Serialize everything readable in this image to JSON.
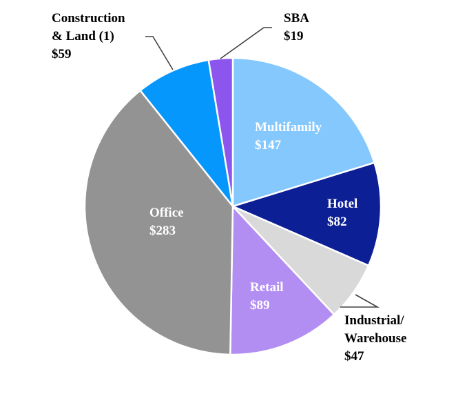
{
  "chart_data": {
    "type": "pie",
    "title": "",
    "units": "$",
    "slices": [
      {
        "name": "Multifamily",
        "value": 147,
        "value_label": "$147",
        "color": "#85c8fd",
        "label_lines": [
          "Multifamily",
          "$147"
        ],
        "label_placement": "inside"
      },
      {
        "name": "Hotel",
        "value": 82,
        "value_label": "$82",
        "color": "#0c1f95",
        "label_lines": [
          "Hotel",
          "$82"
        ],
        "label_placement": "inside"
      },
      {
        "name": "Industrial/ Warehouse",
        "value": 47,
        "value_label": "$47",
        "color": "#d9d9d9",
        "label_lines": [
          "Industrial/",
          "Warehouse",
          "$47"
        ],
        "label_placement": "outside"
      },
      {
        "name": "Retail",
        "value": 89,
        "value_label": "$89",
        "color": "#b38ef2",
        "label_lines": [
          "Retail",
          "$89"
        ],
        "label_placement": "inside"
      },
      {
        "name": "Office",
        "value": 283,
        "value_label": "$283",
        "color": "#939393",
        "label_lines": [
          "Office",
          "$283"
        ],
        "label_placement": "inside"
      },
      {
        "name": "Construction & Land (1)",
        "value": 59,
        "value_label": "$59",
        "color": "#0597fb",
        "label_lines": [
          "Construction",
          "& Land (1)",
          "$59"
        ],
        "label_placement": "outside"
      },
      {
        "name": "SBA",
        "value": 19,
        "value_label": "$19",
        "color": "#8b55ee",
        "label_lines": [
          "SBA",
          "$19"
        ],
        "label_placement": "outside"
      }
    ],
    "start_position": "12 o'clock",
    "direction": "clockwise",
    "legend": "none"
  }
}
